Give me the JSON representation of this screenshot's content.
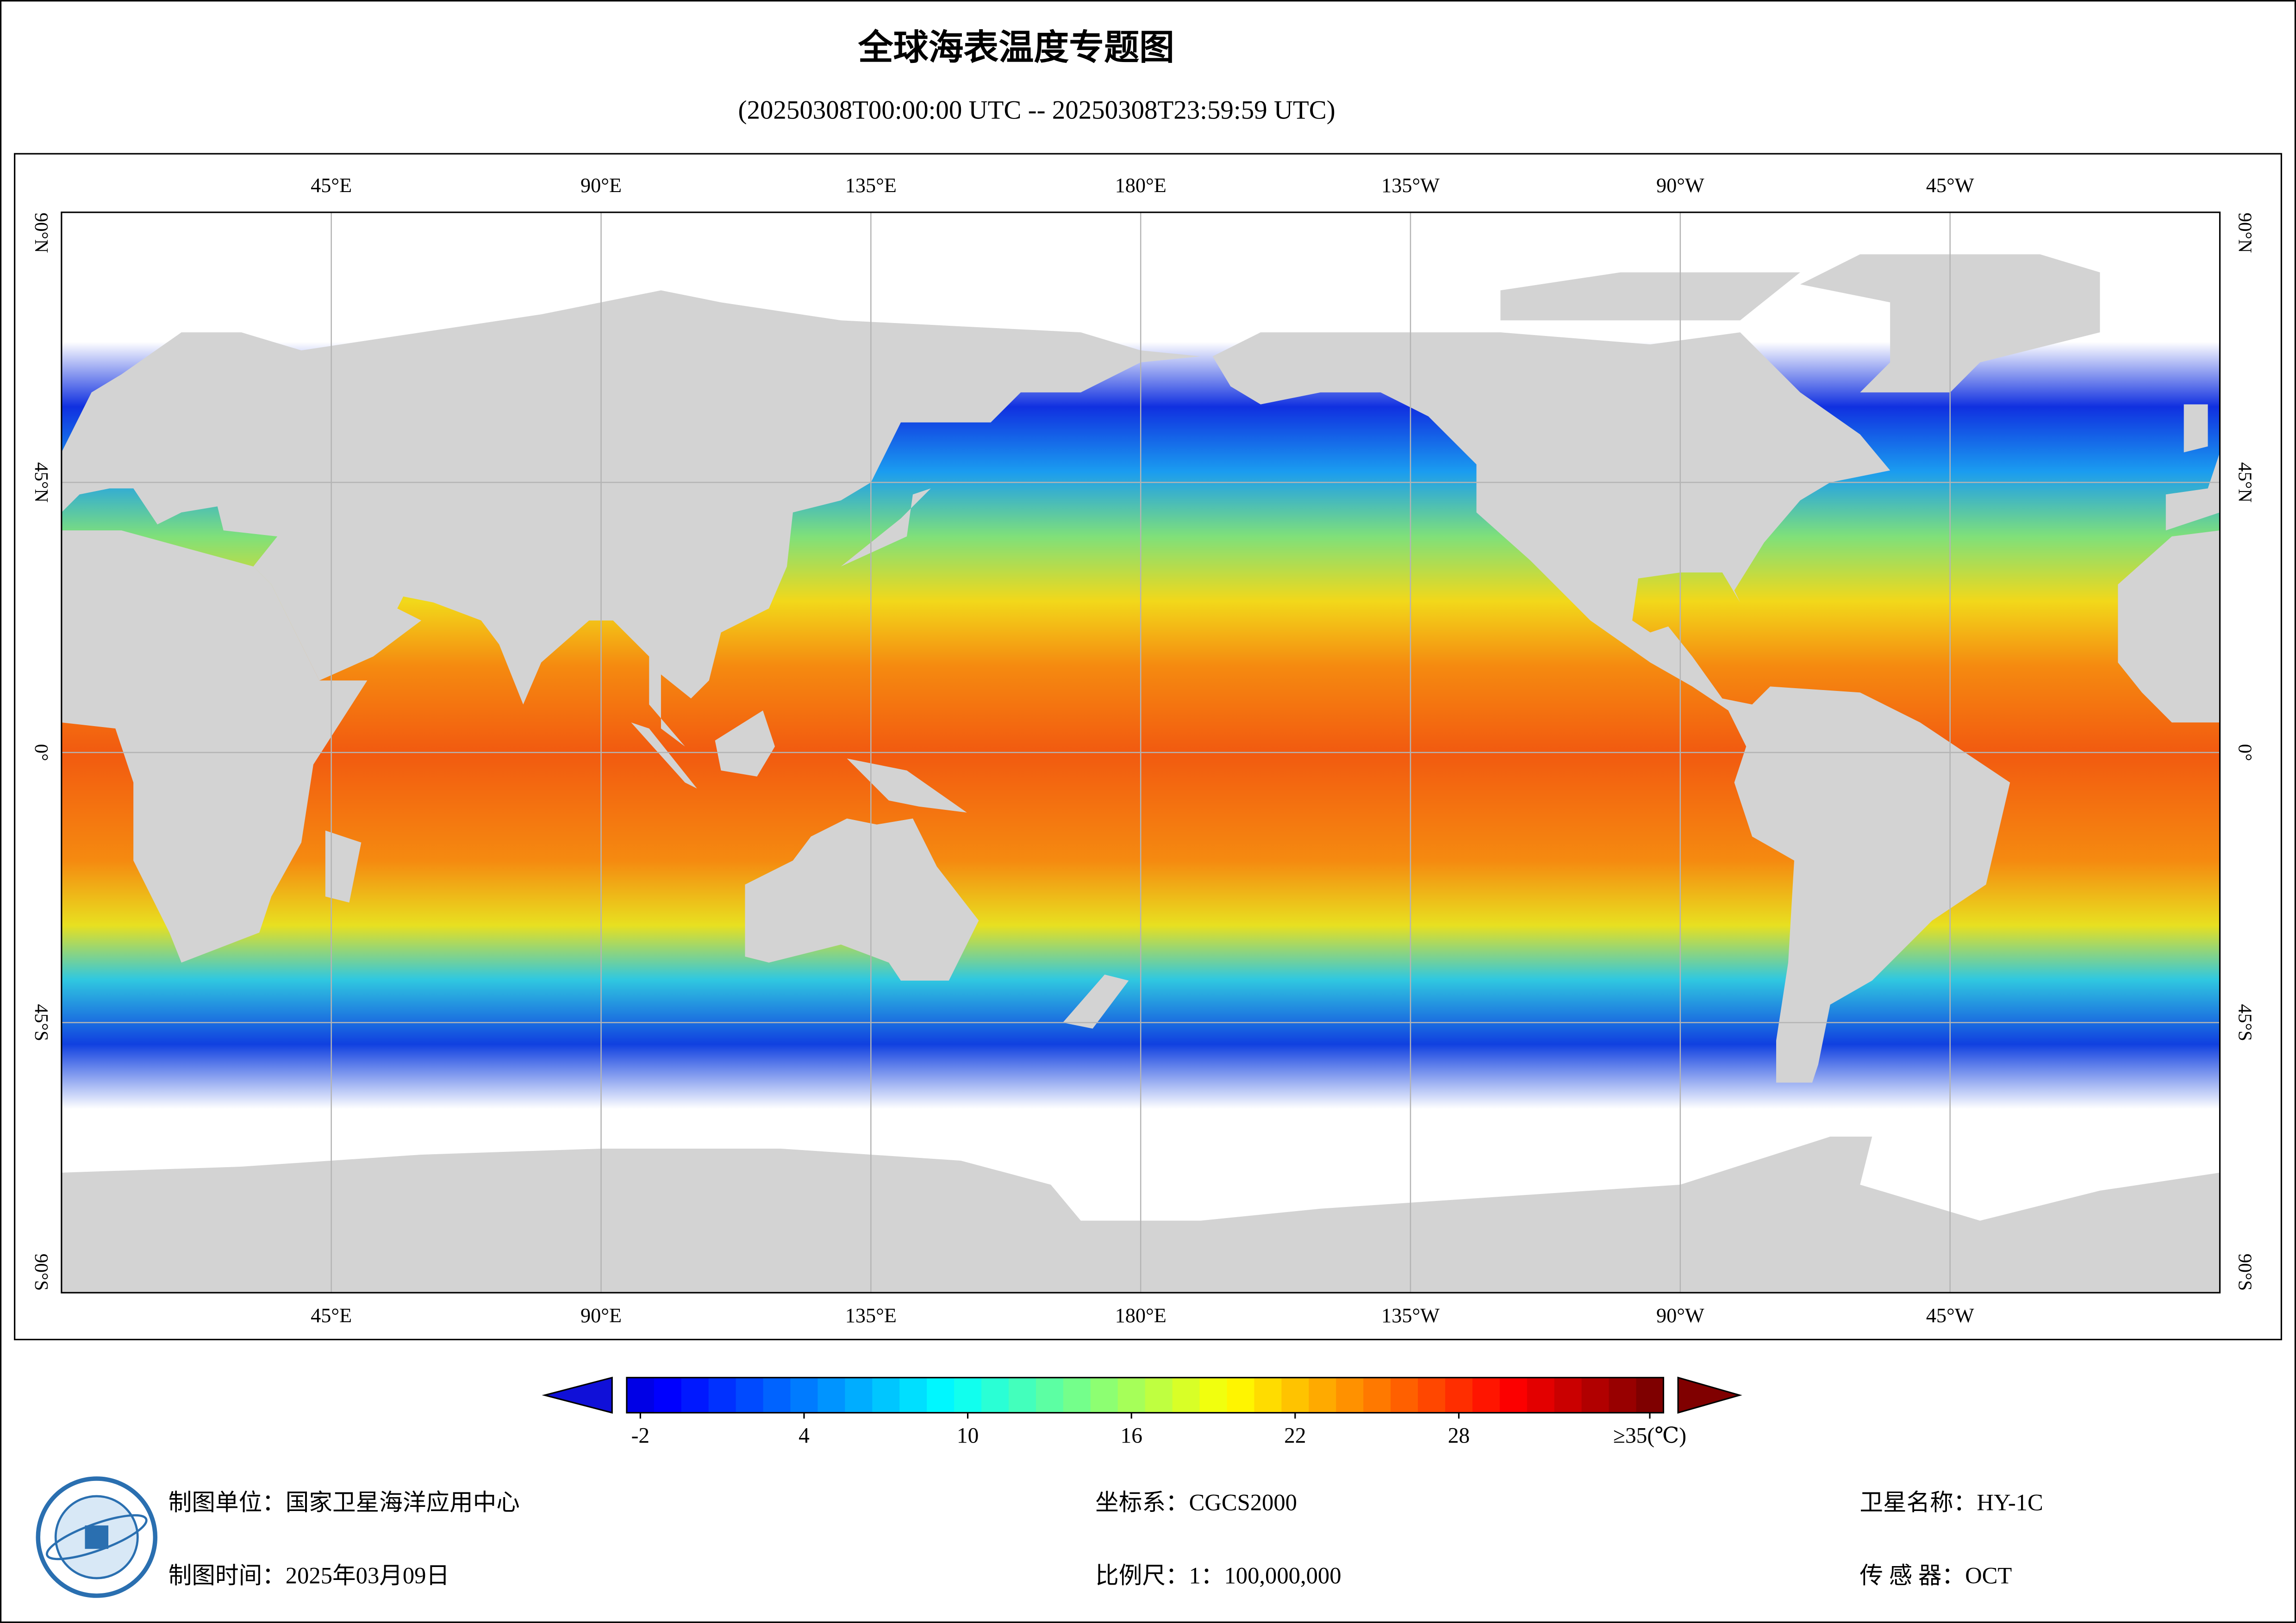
{
  "header": {
    "title": "全球海表温度专题图",
    "subtitle": "(20250308T00:00:00 UTC -- 20250308T23:59:59 UTC)"
  },
  "map": {
    "lon_labels": [
      {
        "value": 45,
        "label": "45°E"
      },
      {
        "value": 90,
        "label": "90°E"
      },
      {
        "value": 135,
        "label": "135°E"
      },
      {
        "value": 180,
        "label": "180°E"
      },
      {
        "value": -135,
        "label": "135°W"
      },
      {
        "value": -90,
        "label": "90°W"
      },
      {
        "value": -45,
        "label": "45°W"
      }
    ],
    "lat_labels": [
      {
        "value": 90,
        "label": "90°N"
      },
      {
        "value": 45,
        "label": "45°N"
      },
      {
        "value": 0,
        "label": "0°"
      },
      {
        "value": -45,
        "label": "45°S"
      },
      {
        "value": -90,
        "label": "90°S"
      }
    ]
  },
  "colorbar": {
    "lim": [
      -2.5,
      35.5
    ],
    "ticks": [
      -2,
      4,
      10,
      16,
      22,
      28,
      {
        "value": 35,
        "label": "≥35(℃)"
      }
    ]
  },
  "footer": {
    "unit": "制图单位：国家卫星海洋应用中心",
    "date": "制图时间：2025年03月09日",
    "crs": "坐标系：CGCS2000",
    "scale": "比例尺：1：100,000,000",
    "satellite": "卫星名称：HY-1C",
    "sensor": "传 感 器：OCT"
  }
}
